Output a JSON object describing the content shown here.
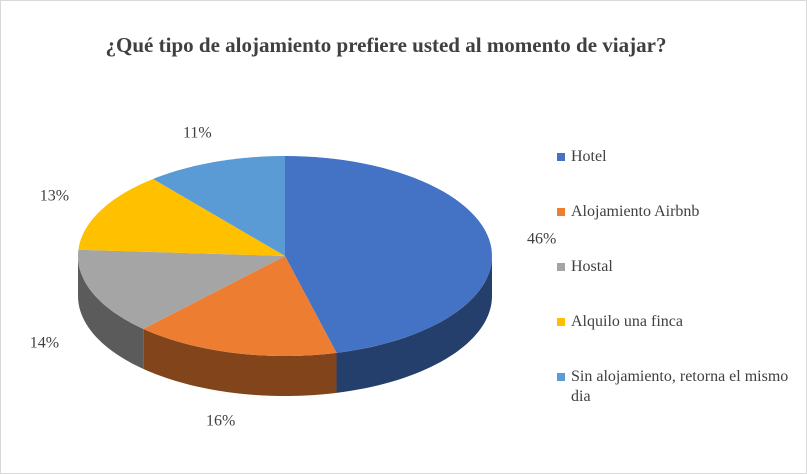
{
  "chart_data": {
    "type": "pie3d",
    "title": "¿Qué tipo de alojamiento prefiere usted al momento de viajar?",
    "categories": [
      "Hotel",
      "Alojamiento Airbnb",
      "Hostal",
      "Alquilo una finca",
      "Sin alojamiento, retorna el mismo dia"
    ],
    "values": [
      46,
      16,
      14,
      13,
      11
    ],
    "value_labels": [
      "46%",
      "16%",
      "14%",
      "13%",
      "11%"
    ],
    "colors": [
      "#4472c4",
      "#ed7d31",
      "#a5a5a5",
      "#ffc000",
      "#5b9bd5"
    ],
    "legend": "right"
  }
}
